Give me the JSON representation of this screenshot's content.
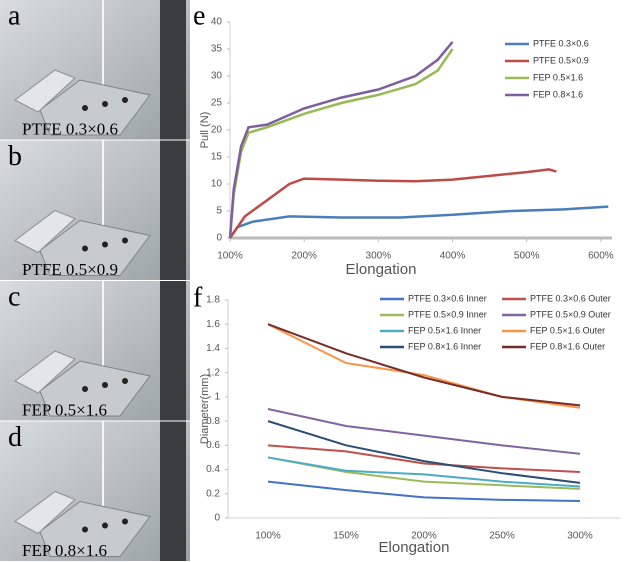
{
  "photos": [
    {
      "letter": "a",
      "caption": "PTFE 0.3×0.6"
    },
    {
      "letter": "b",
      "caption": "PTFE 0.5×0.9"
    },
    {
      "letter": "c",
      "caption": "FEP  0.5×1.6"
    },
    {
      "letter": "d",
      "caption": "FEP  0.8×1.6"
    }
  ],
  "chart_data": [
    {
      "type": "line",
      "letter": "e",
      "ylabel": "Pull (N)",
      "xlabel": "Elongation",
      "xlim": [
        100,
        615
      ],
      "ylim": [
        0,
        40
      ],
      "xticks": [
        {
          "value": 100,
          "label": "100%"
        },
        {
          "value": 200,
          "label": "200%"
        },
        {
          "value": 300,
          "label": "300%"
        },
        {
          "value": 400,
          "label": "400%"
        },
        {
          "value": 500,
          "label": "500%"
        },
        {
          "value": 600,
          "label": "600%"
        }
      ],
      "yticks": [
        0,
        5,
        10,
        15,
        20,
        25,
        30,
        35,
        40
      ],
      "series": [
        {
          "name": "PTFE 0.3×0.6",
          "color": "#4a7ebb",
          "x": [
            100,
            110,
            130,
            180,
            250,
            330,
            400,
            480,
            550,
            610
          ],
          "values": [
            0,
            2,
            3,
            4,
            3.8,
            3.8,
            4.3,
            5,
            5.3,
            5.8
          ]
        },
        {
          "name": "PTFE 0.5×0.9",
          "color": "#be4b48",
          "x": [
            100,
            120,
            150,
            180,
            200,
            250,
            300,
            350,
            400,
            450,
            500,
            530,
            540
          ],
          "values": [
            0,
            4,
            7,
            10,
            11,
            10.8,
            10.6,
            10.5,
            10.8,
            11.5,
            12.2,
            12.7,
            12.3
          ]
        },
        {
          "name": "FEP  0.5×1.6",
          "color": "#98b954",
          "x": [
            100,
            105,
            115,
            125,
            150,
            200,
            250,
            300,
            350,
            380,
            400
          ],
          "values": [
            0,
            8,
            16,
            19.5,
            20.5,
            23,
            25,
            26.5,
            28.5,
            31,
            35
          ]
        },
        {
          "name": "FEP  0.8×1.6",
          "color": "#7d5fa0",
          "x": [
            100,
            105,
            115,
            125,
            150,
            200,
            250,
            300,
            350,
            380,
            400
          ],
          "values": [
            0,
            9,
            17,
            20.5,
            21,
            24,
            26,
            27.5,
            30,
            33,
            36.3
          ]
        }
      ]
    },
    {
      "type": "line",
      "letter": "f",
      "ylabel": "Diameter(mm)",
      "xlabel": "Elongation",
      "categories": [
        "100%",
        "150%",
        "200%",
        "250%",
        "300%"
      ],
      "ylim": [
        0,
        1.8
      ],
      "yticks": [
        0,
        0.2,
        0.4,
        0.6,
        0.8,
        1,
        1.2,
        1.4,
        1.6,
        1.8
      ],
      "series": [
        {
          "name": "PTFE 0.3×0.6 Inner",
          "color": "#4472c4",
          "values": [
            0.3,
            0.23,
            0.17,
            0.15,
            0.14
          ]
        },
        {
          "name": "PTFE 0.3×0.6 Outer",
          "color": "#c0504d",
          "values": [
            0.6,
            0.55,
            0.45,
            0.41,
            0.38
          ]
        },
        {
          "name": "PTFE 0.5×0.9 Inner",
          "color": "#9bbb59",
          "values": [
            0.5,
            0.38,
            0.3,
            0.27,
            0.24
          ]
        },
        {
          "name": "PTFE 0.5×0.9 Outer",
          "color": "#8064a2",
          "values": [
            0.9,
            0.76,
            0.68,
            0.6,
            0.53
          ]
        },
        {
          "name": "FEP  0.5×1.6 Inner",
          "color": "#4bacc6",
          "values": [
            0.5,
            0.39,
            0.36,
            0.3,
            0.26
          ]
        },
        {
          "name": "FEP  0.5×1.6 Outer",
          "color": "#f79646",
          "values": [
            1.6,
            1.28,
            1.18,
            1.0,
            0.91
          ]
        },
        {
          "name": "FEP  0.8×1.6 Inner",
          "color": "#2c4d75",
          "values": [
            0.8,
            0.6,
            0.47,
            0.37,
            0.29
          ]
        },
        {
          "name": "FEP  0.8×1.6 Outer",
          "color": "#772c2a",
          "values": [
            1.6,
            1.36,
            1.16,
            1.0,
            0.93
          ]
        }
      ]
    }
  ]
}
